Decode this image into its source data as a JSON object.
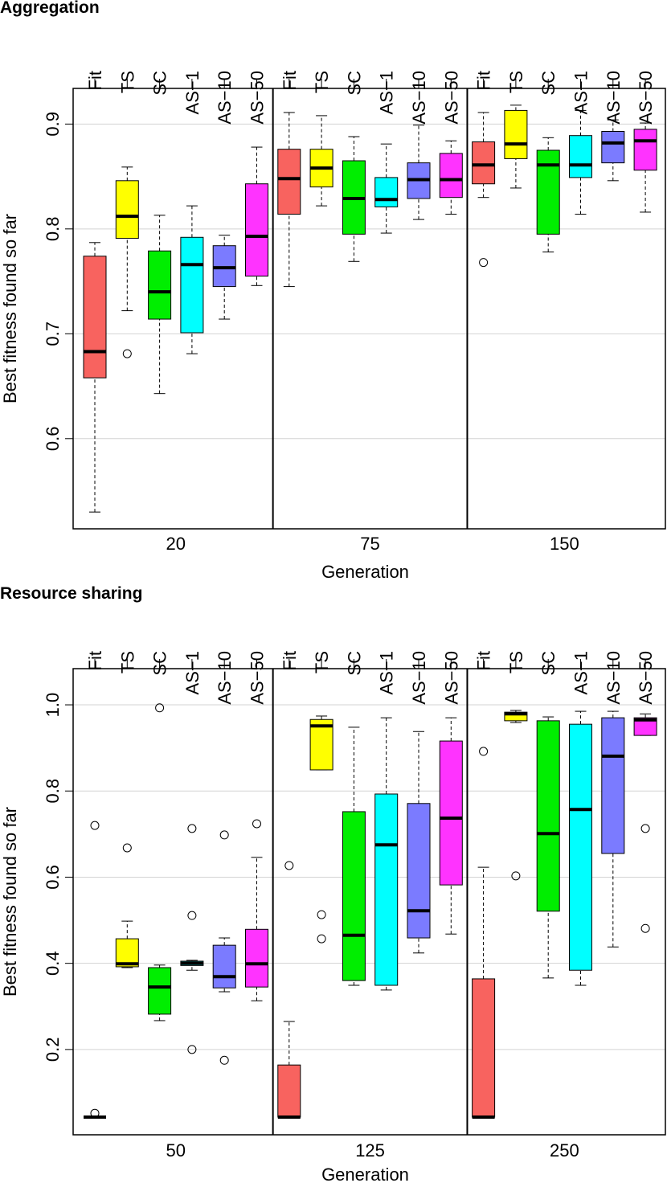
{
  "chart_data": [
    {
      "type": "boxplot",
      "title": "Aggregation",
      "y_label": "Best fitness found so far",
      "x_label": "Generation",
      "groups": [
        "20",
        "75",
        "150"
      ],
      "ylim": [
        0.514,
        0.934
      ],
      "yticks": [
        0.6,
        0.7,
        0.8,
        0.9
      ],
      "grid": true,
      "series": [
        {
          "name": "Fit",
          "color": "#f8635f",
          "whisker_low": [
            0.53,
            0.745,
            0.83
          ],
          "q1": [
            0.658,
            0.814,
            0.843
          ],
          "median": [
            0.683,
            0.848,
            0.861
          ],
          "q3": [
            0.774,
            0.876,
            0.883
          ],
          "whisker_high": [
            0.787,
            0.911,
            0.911
          ],
          "outliers": [
            [],
            [],
            [
              0.768
            ]
          ]
        },
        {
          "name": "TS",
          "color": "#ffff00",
          "whisker_low": [
            0.722,
            0.822,
            0.839
          ],
          "q1": [
            0.791,
            0.84,
            0.867
          ],
          "median": [
            0.812,
            0.858,
            0.881
          ],
          "q3": [
            0.846,
            0.876,
            0.913
          ],
          "whisker_high": [
            0.859,
            0.908,
            0.918
          ],
          "outliers": [
            [
              0.681
            ],
            [],
            []
          ]
        },
        {
          "name": "SC",
          "color": "#00ee00",
          "whisker_low": [
            0.643,
            0.769,
            0.778
          ],
          "q1": [
            0.714,
            0.795,
            0.795
          ],
          "median": [
            0.74,
            0.829,
            0.861
          ],
          "q3": [
            0.779,
            0.865,
            0.875
          ],
          "whisker_high": [
            0.813,
            0.888,
            0.887
          ],
          "outliers": [
            [],
            [],
            []
          ]
        },
        {
          "name": "AS−1",
          "color": "#00ffff",
          "whisker_low": [
            0.681,
            0.796,
            0.814
          ],
          "q1": [
            0.701,
            0.821,
            0.849
          ],
          "median": [
            0.766,
            0.828,
            0.861
          ],
          "q3": [
            0.792,
            0.849,
            0.889
          ],
          "whisker_high": [
            0.822,
            0.881,
            0.913
          ],
          "outliers": [
            [],
            [],
            []
          ]
        },
        {
          "name": "AS−10",
          "color": "#7b7bff",
          "whisker_low": [
            0.714,
            0.809,
            0.846
          ],
          "q1": [
            0.745,
            0.829,
            0.863
          ],
          "median": [
            0.763,
            0.847,
            0.882
          ],
          "q3": [
            0.784,
            0.863,
            0.893
          ],
          "whisker_high": [
            0.794,
            0.899,
            0.904
          ],
          "outliers": [
            [],
            [],
            []
          ]
        },
        {
          "name": "AS−50",
          "color": "#ff33ff",
          "whisker_low": [
            0.746,
            0.814,
            0.816
          ],
          "q1": [
            0.755,
            0.83,
            0.856
          ],
          "median": [
            0.793,
            0.847,
            0.884
          ],
          "q3": [
            0.843,
            0.872,
            0.895
          ],
          "whisker_high": [
            0.878,
            0.884,
            0.901
          ],
          "outliers": [
            [],
            [],
            []
          ]
        }
      ]
    },
    {
      "type": "boxplot",
      "title": "Resource sharing",
      "y_label": "Best fitness found so far",
      "x_label": "Generation",
      "groups": [
        "50",
        "125",
        "250"
      ],
      "ylim": [
        0.002,
        1.084
      ],
      "yticks": [
        0.2,
        0.4,
        0.6,
        0.8,
        {
          "value": 1,
          "label": "1.0"
        }
      ],
      "grid": true,
      "series": [
        {
          "name": "Fit",
          "color": "#f8635f",
          "whisker_low": [
            0.043,
            0.043,
            0.043
          ],
          "q1": [
            0.043,
            0.043,
            0.043
          ],
          "median": [
            0.043,
            0.043,
            0.043
          ],
          "q3": [
            0.043,
            0.164,
            0.364
          ],
          "whisker_high": [
            0.043,
            0.265,
            0.623
          ],
          "outliers": [
            [
              0.052,
              0.72
            ],
            [
              0.627
            ],
            [
              0.892
            ]
          ]
        },
        {
          "name": "TS",
          "color": "#ffff00",
          "whisker_low": [
            0.39,
            0.849,
            0.959
          ],
          "q1": [
            0.392,
            0.849,
            0.963
          ],
          "median": [
            0.399,
            0.951,
            0.979
          ],
          "q3": [
            0.457,
            0.966,
            0.983
          ],
          "whisker_high": [
            0.498,
            0.974,
            0.987
          ],
          "outliers": [
            [
              0.668
            ],
            [
              0.513,
              0.457
            ],
            [
              0.603
            ]
          ]
        },
        {
          "name": "SC",
          "color": "#00ee00",
          "whisker_low": [
            0.267,
            0.349,
            0.366
          ],
          "q1": [
            0.282,
            0.36,
            0.521
          ],
          "median": [
            0.345,
            0.465,
            0.701
          ],
          "q3": [
            0.39,
            0.752,
            0.963
          ],
          "whisker_high": [
            0.396,
            0.948,
            0.972
          ],
          "outliers": [
            [
              0.993
            ],
            [],
            []
          ]
        },
        {
          "name": "AS−1",
          "color": "#00ffff",
          "whisker_low": [
            0.384,
            0.338,
            0.349
          ],
          "q1": [
            0.395,
            0.349,
            0.384
          ],
          "median": [
            0.4,
            0.675,
            0.757
          ],
          "q3": [
            0.405,
            0.793,
            0.955
          ],
          "whisker_high": [
            0.407,
            0.97,
            0.985
          ],
          "outliers": [
            [
              0.713,
              0.511,
              0.2
            ],
            [],
            []
          ]
        },
        {
          "name": "AS−10",
          "color": "#7b7bff",
          "whisker_low": [
            0.334,
            0.424,
            0.438
          ],
          "q1": [
            0.343,
            0.459,
            0.655
          ],
          "median": [
            0.369,
            0.522,
            0.881
          ],
          "q3": [
            0.442,
            0.771,
            0.97
          ],
          "whisker_high": [
            0.459,
            0.938,
            0.985
          ],
          "outliers": [
            [
              0.698,
              0.175
            ],
            [],
            []
          ]
        },
        {
          "name": "AS−50",
          "color": "#ff33ff",
          "whisker_low": [
            0.313,
            0.468,
            0.929
          ],
          "q1": [
            0.345,
            0.582,
            0.929
          ],
          "median": [
            0.399,
            0.737,
            0.965
          ],
          "q3": [
            0.479,
            0.916,
            0.97
          ],
          "whisker_high": [
            0.646,
            0.97,
            0.979
          ],
          "outliers": [
            [
              0.724
            ],
            [],
            [
              0.713,
              0.481
            ]
          ]
        }
      ]
    }
  ]
}
